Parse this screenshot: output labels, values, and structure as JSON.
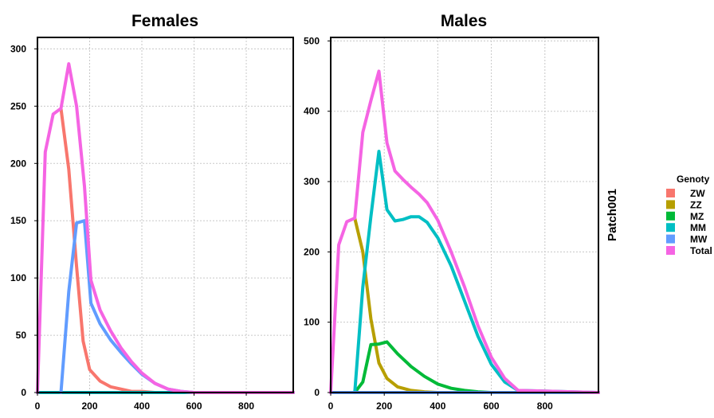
{
  "chart_data": [
    {
      "type": "line",
      "title": "Females",
      "xlim": [
        0,
        980
      ],
      "ylim": [
        0,
        310
      ],
      "xticks": [
        0,
        200,
        400,
        600,
        800
      ],
      "yticks": [
        0,
        50,
        100,
        150,
        200,
        250,
        300
      ],
      "grid": true,
      "series": [
        {
          "name": "ZW",
          "color": "#F8766D",
          "x": [
            90,
            120,
            150,
            175,
            200,
            240,
            280,
            320,
            360,
            400,
            450,
            500,
            980
          ],
          "y": [
            248,
            195,
            110,
            45,
            20,
            10,
            5,
            3,
            1,
            1,
            0,
            0,
            0
          ]
        },
        {
          "name": "ZZ",
          "color": "#B79F00",
          "x": [
            0,
            980
          ],
          "y": [
            0,
            0
          ]
        },
        {
          "name": "MZ",
          "color": "#00BA38",
          "x": [
            0,
            980
          ],
          "y": [
            0,
            0
          ]
        },
        {
          "name": "MM",
          "color": "#00BFC4",
          "x": [
            0,
            980
          ],
          "y": [
            0,
            0
          ]
        },
        {
          "name": "MW",
          "color": "#619CFF",
          "x": [
            90,
            120,
            150,
            180,
            205,
            240,
            280,
            320,
            360,
            400,
            450,
            500,
            550,
            600,
            980
          ],
          "y": [
            0,
            88,
            148,
            150,
            78,
            60,
            46,
            35,
            25,
            16,
            8,
            3,
            1,
            0,
            0
          ]
        },
        {
          "name": "Total",
          "color": "#F564E3",
          "x": [
            0,
            30,
            60,
            90,
            120,
            150,
            180,
            205,
            240,
            280,
            320,
            360,
            400,
            450,
            500,
            550,
            600,
            980
          ],
          "y": [
            0,
            210,
            243,
            248,
            287,
            250,
            180,
            98,
            72,
            54,
            39,
            27,
            17,
            8,
            3,
            1,
            0,
            0
          ]
        }
      ]
    },
    {
      "type": "line",
      "title": "Males",
      "xlim": [
        0,
        1000
      ],
      "ylim": [
        0,
        505
      ],
      "xticks": [
        0,
        200,
        400,
        600,
        800
      ],
      "yticks": [
        0,
        100,
        200,
        300,
        400,
        500
      ],
      "grid": true,
      "strip_label": "Patch001",
      "series": [
        {
          "name": "ZW",
          "color": "#F8766D",
          "x": [
            0,
            1000
          ],
          "y": [
            0,
            0
          ]
        },
        {
          "name": "ZZ",
          "color": "#B79F00",
          "x": [
            90,
            120,
            150,
            180,
            210,
            250,
            300,
            350,
            400,
            500,
            1000
          ],
          "y": [
            248,
            200,
            105,
            42,
            20,
            8,
            3,
            1,
            0,
            0,
            0
          ]
        },
        {
          "name": "MZ",
          "color": "#00BA38",
          "x": [
            90,
            120,
            150,
            180,
            210,
            250,
            300,
            350,
            400,
            450,
            500,
            550,
            600,
            1000
          ],
          "y": [
            0,
            15,
            68,
            69,
            72,
            55,
            37,
            23,
            12,
            6,
            3,
            1,
            0,
            0
          ]
        },
        {
          "name": "MM",
          "color": "#00BFC4",
          "x": [
            90,
            120,
            150,
            180,
            210,
            240,
            270,
            300,
            330,
            360,
            400,
            450,
            500,
            550,
            600,
            650,
            700,
            1000
          ],
          "y": [
            0,
            150,
            250,
            343,
            260,
            244,
            246,
            250,
            250,
            242,
            220,
            180,
            130,
            80,
            40,
            15,
            3,
            0
          ]
        },
        {
          "name": "MW",
          "color": "#619CFF",
          "x": [
            0,
            1000
          ],
          "y": [
            0,
            0
          ]
        },
        {
          "name": "Total",
          "color": "#F564E3",
          "x": [
            0,
            30,
            60,
            90,
            120,
            150,
            180,
            210,
            240,
            270,
            300,
            330,
            360,
            400,
            450,
            500,
            550,
            600,
            650,
            700,
            1000
          ],
          "y": [
            0,
            210,
            243,
            248,
            370,
            415,
            457,
            355,
            315,
            303,
            292,
            282,
            270,
            245,
            200,
            150,
            95,
            50,
            20,
            3,
            0
          ]
        }
      ]
    }
  ],
  "legend": {
    "title": "Genoty",
    "entries": [
      {
        "label": "ZW",
        "color": "#F8766D"
      },
      {
        "label": "ZZ",
        "color": "#B79F00"
      },
      {
        "label": "MZ",
        "color": "#00BA38"
      },
      {
        "label": "MM",
        "color": "#00BFC4"
      },
      {
        "label": "MW",
        "color": "#619CFF"
      },
      {
        "label": "Total",
        "color": "#F564E3"
      }
    ]
  }
}
